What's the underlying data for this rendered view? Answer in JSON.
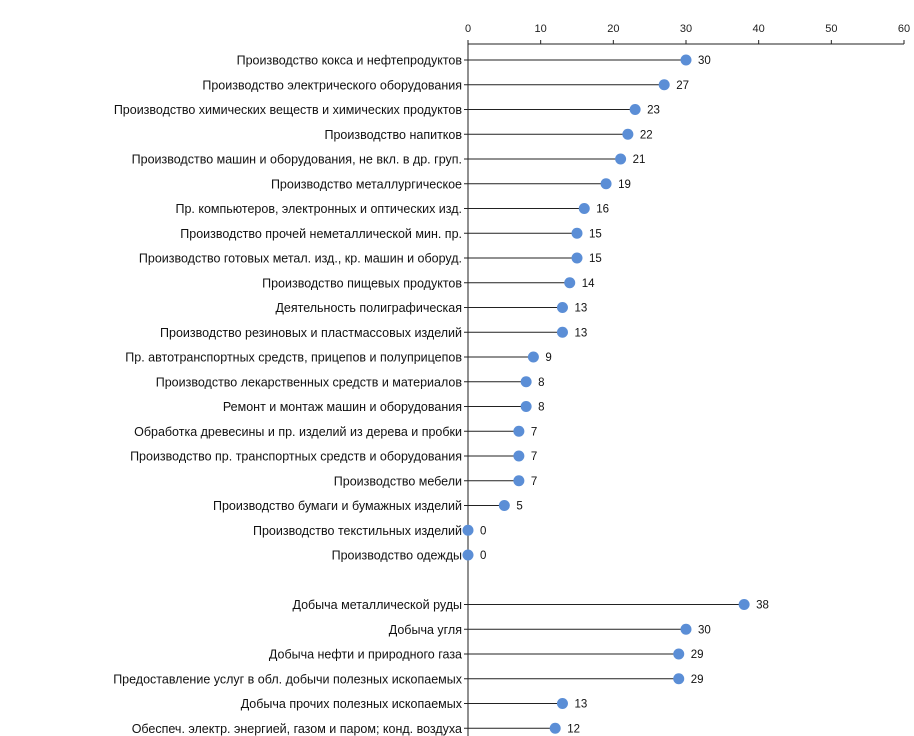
{
  "chart_data": {
    "type": "lollipop",
    "title": "",
    "xlabel": "",
    "ylabel": "",
    "xlim": [
      0,
      60
    ],
    "x_ticks": [
      "0",
      "10",
      "20",
      "30",
      "40",
      "50",
      "60"
    ],
    "grid": false,
    "legend": "none",
    "marker_color": "#5b8ed6",
    "series": [
      {
        "values": [
          30,
          27,
          23,
          22,
          21,
          19,
          16,
          15,
          15,
          14,
          13,
          13,
          9,
          8,
          8,
          7,
          7,
          7,
          5,
          0,
          0,
          null,
          38,
          30,
          29,
          29,
          13,
          12
        ]
      }
    ],
    "categories": [
      "Производство кокса и нефтепродуктов",
      "Производство электрического оборудования",
      "Производство химических веществ и химических продуктов",
      "Производство напитков",
      "Производство машин и оборудования, не вкл. в др. груп.",
      "Производство металлургическое",
      "Пр. компьютеров, электронных и оптических изд.",
      "Производство прочей неметаллической мин. пр.",
      "Производство готовых метал. изд., кр. машин и оборуд.",
      "Производство пищевых продуктов",
      "Деятельность полиграфическая",
      "Производство резиновых и пластмассовых изделий",
      "Пр. автотранспортных средств, прицепов и полуприцепов",
      "Производство лекарственных средств и материалов",
      "Ремонт и монтаж машин и оборудования",
      "Обработка древесины и пр. изделий из дерева и пробки",
      "Производство пр. транспортных средств и оборудования",
      "Производство мебели",
      "Производство бумаги и бумажных изделий",
      "Производство текстильных изделий",
      "Производство одежды",
      "",
      "Добыча металлической руды",
      "Добыча угля",
      "Добыча нефти и природного газа",
      "Предоставление услуг в обл. добычи полезных ископаемых",
      "Добыча прочих полезных ископаемых",
      "Обеспеч. электр. энергией, газом и паром; конд. воздуха"
    ]
  }
}
